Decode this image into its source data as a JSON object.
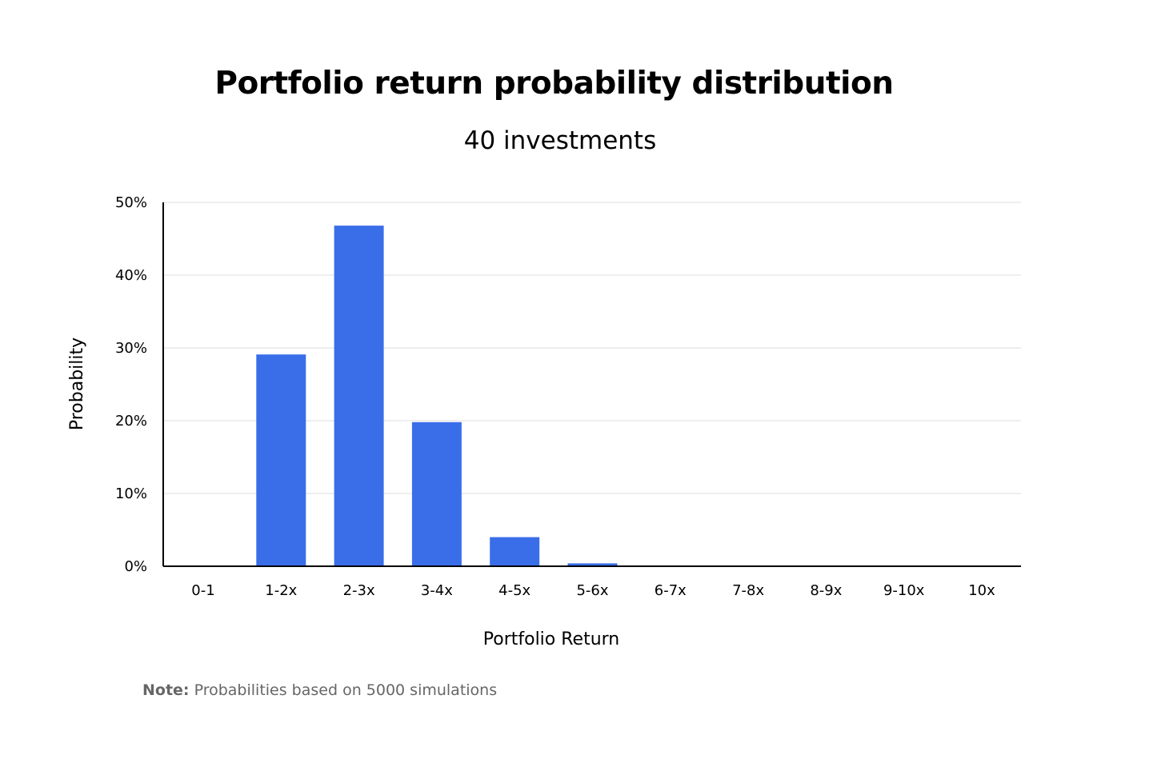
{
  "chart_data": {
    "type": "bar",
    "title": "Portfolio return probability distribution",
    "subtitle": "40 investments",
    "xlabel": "Portfolio Return",
    "ylabel": "Probability",
    "categories": [
      "0-1",
      "1-2x",
      "2-3x",
      "3-4x",
      "4-5x",
      "5-6x",
      "6-7x",
      "7-8x",
      "8-9x",
      "9-10x",
      "10x"
    ],
    "values": [
      0,
      29.1,
      46.8,
      19.8,
      4.0,
      0.4,
      0,
      0,
      0,
      0,
      0
    ],
    "ylim": [
      0,
      50
    ],
    "yticks": [
      0,
      10,
      20,
      30,
      40,
      50
    ],
    "ytick_labels": [
      "0%",
      "10%",
      "20%",
      "30%",
      "40%",
      "50%"
    ],
    "grid": true,
    "legend": "none",
    "bar_color": "#3a6ee9"
  },
  "note": {
    "label": "Note:",
    "text": "Probabilities based on 5000 simulations"
  }
}
